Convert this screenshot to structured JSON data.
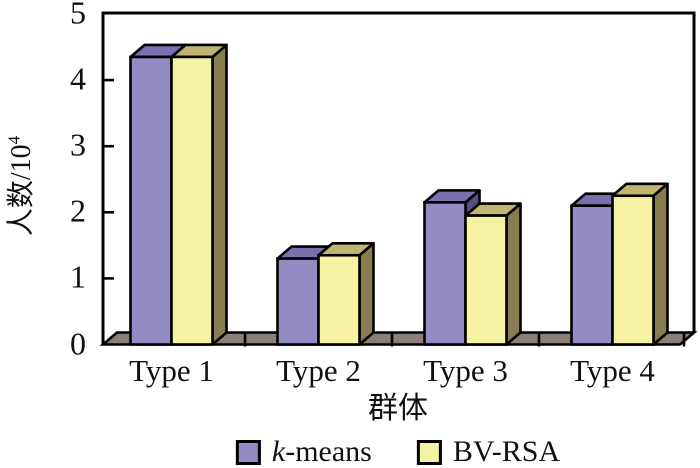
{
  "figure": {
    "background": "#ffffff",
    "axis_color": "#000000",
    "text_color": "#111111"
  },
  "chart_data": {
    "type": "bar",
    "style": "3d-grouped-columns",
    "title": "",
    "xlabel": "群体",
    "ylabel": "人数/10⁴",
    "ylabel_base": "人数/10",
    "ylabel_exponent": "4",
    "categories": [
      "Type 1",
      "Type 2",
      "Type 3",
      "Type 4"
    ],
    "series": [
      {
        "name": "k-means",
        "label_italic": "k",
        "label_rest": "-means",
        "values": [
          4.35,
          1.3,
          2.15,
          2.1
        ],
        "color_front": "#938bc3",
        "color_top": "#7871ad",
        "color_side": "#55507e"
      },
      {
        "name": "BV-RSA",
        "label_italic": "",
        "label_rest": "BV-RSA",
        "values": [
          4.35,
          1.35,
          1.95,
          2.25
        ],
        "color_front": "#f6f2a3",
        "color_top": "#c0b672",
        "color_side": "#877d4f"
      }
    ],
    "y_axis": {
      "min": 0,
      "max": 5,
      "tick_step": 1,
      "tick_labels": [
        "0",
        "1",
        "2",
        "3",
        "4",
        "5"
      ]
    },
    "grid": false,
    "legend_position": "bottom",
    "floor_color": "#8b8077"
  }
}
